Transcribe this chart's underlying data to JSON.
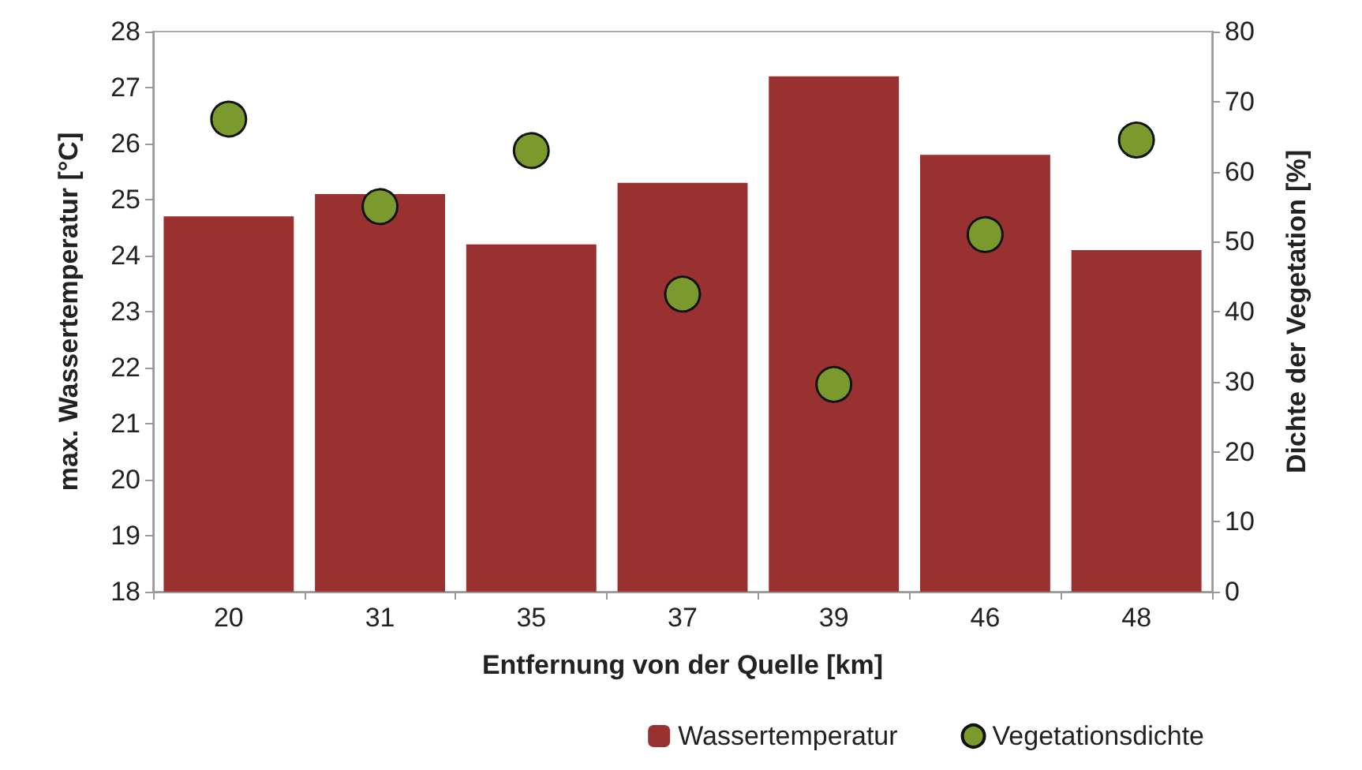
{
  "chart_data": {
    "type": "bar",
    "xlabel": "Entfernung von der Quelle [km]",
    "ylabel": "max. Wassertemperatur [°C]",
    "y2label": "Dichte der Vegetation [%]",
    "categories": [
      "20",
      "31",
      "35",
      "37",
      "39",
      "46",
      "48"
    ],
    "series": [
      {
        "name": "Wassertemperatur",
        "color": "#993131",
        "values": [
          24.7,
          25.1,
          24.2,
          25.3,
          27.2,
          25.8,
          24.1
        ]
      },
      {
        "name": "Vegetationsdichte",
        "type": "scatter",
        "axis": "y2",
        "color": "#7a9a2e",
        "marker": "circle",
        "values": [
          67.5,
          55,
          63,
          42.5,
          29.6,
          51,
          64.5
        ]
      }
    ],
    "ylim": [
      18,
      28
    ],
    "yticks": [
      18,
      19,
      20,
      21,
      22,
      23,
      24,
      25,
      26,
      27,
      28
    ],
    "y2lim": [
      0,
      80
    ],
    "y2ticks": [
      0,
      10,
      20,
      30,
      40,
      50,
      60,
      70,
      80
    ],
    "grid": false,
    "legend": "bottom right"
  }
}
